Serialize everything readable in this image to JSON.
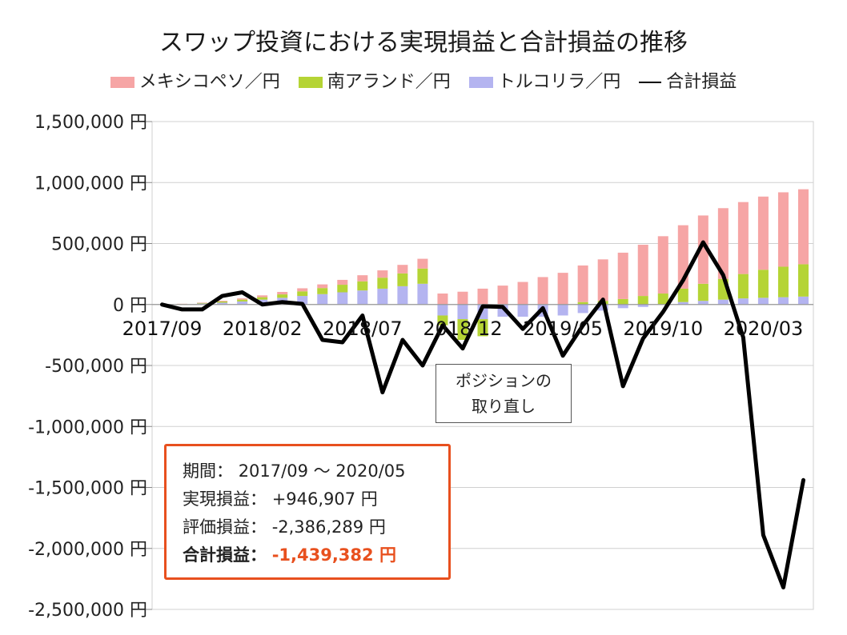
{
  "chart_data": {
    "type": "bar",
    "stacked": true,
    "title": "スワップ投資における実現損益と合計損益の推移",
    "legend_position": "top",
    "ylim": [
      -2500000,
      1500000
    ],
    "yticks": [
      1500000,
      1000000,
      500000,
      0,
      -500000,
      -1000000,
      -1500000,
      -2000000,
      -2500000
    ],
    "ytick_labels": [
      "1,500,000 円",
      "1,000,000 円",
      "500,000 円",
      "0 円",
      "-500,000 円",
      "-1,000,000 円",
      "-1,500,000 円",
      "-2,000,000 円",
      "-2,500,000 円"
    ],
    "grid": true,
    "categories": [
      "2017/09",
      "2017/10",
      "2017/11",
      "2017/12",
      "2018/01",
      "2018/02",
      "2018/03",
      "2018/04",
      "2018/05",
      "2018/06",
      "2018/07",
      "2018/08",
      "2018/09",
      "2018/10",
      "2018/11",
      "2018/12",
      "2019/01",
      "2019/02",
      "2019/03",
      "2019/04",
      "2019/05",
      "2019/06",
      "2019/07",
      "2019/08",
      "2019/09",
      "2019/10",
      "2019/11",
      "2019/12",
      "2020/01",
      "2020/02",
      "2020/03",
      "2020/04",
      "2020/05"
    ],
    "xtick_labels": [
      "2017/09",
      "2018/02",
      "2018/07",
      "2018 12",
      "2019/05",
      "2019/10",
      "2020/03"
    ],
    "xtick_label_index": [
      0,
      5,
      10,
      15,
      20,
      25,
      30
    ],
    "series": [
      {
        "name": "トルコリラ／円",
        "kind": "bar",
        "color": "#b4b4f0",
        "values": [
          0,
          3000,
          8000,
          15000,
          25000,
          40000,
          55000,
          70000,
          85000,
          100000,
          115000,
          130000,
          150000,
          170000,
          -90000,
          -120000,
          -120000,
          -100000,
          -100000,
          -100000,
          -90000,
          -70000,
          -50000,
          -30000,
          -20000,
          0,
          20000,
          30000,
          40000,
          50000,
          55000,
          60000,
          65000
        ]
      },
      {
        "name": "南アランド／円",
        "kind": "bar",
        "color": "#b5d435",
        "values": [
          0,
          2000,
          5000,
          10000,
          15000,
          20000,
          28000,
          38000,
          50000,
          62000,
          75000,
          90000,
          105000,
          125000,
          -80000,
          -170000,
          -140000,
          0,
          0,
          0,
          0,
          20000,
          30000,
          45000,
          70000,
          90000,
          110000,
          140000,
          170000,
          200000,
          230000,
          250000,
          265000
        ]
      },
      {
        "name": "メキシコペソ／円",
        "kind": "bar",
        "color": "#f6a5a5",
        "values": [
          0,
          1000,
          3000,
          6000,
          10000,
          15000,
          20000,
          25000,
          30000,
          40000,
          50000,
          60000,
          70000,
          80000,
          90000,
          105000,
          130000,
          155000,
          185000,
          225000,
          260000,
          300000,
          340000,
          380000,
          420000,
          470000,
          520000,
          560000,
          580000,
          590000,
          600000,
          610000,
          615000
        ]
      },
      {
        "name": "合計損益",
        "kind": "line",
        "color": "#000000",
        "values": [
          0,
          -40000,
          -40000,
          70000,
          100000,
          0,
          20000,
          5000,
          -290000,
          -310000,
          -90000,
          -720000,
          -290000,
          -500000,
          -170000,
          -360000,
          -15000,
          -20000,
          -200000,
          -30000,
          -420000,
          -170000,
          40000,
          -670000,
          -280000,
          -60000,
          200000,
          510000,
          240000,
          -270000,
          -1890000,
          -2320000,
          -1440000
        ]
      }
    ],
    "legend_order": [
      "メキシコペソ／円",
      "南アランド／円",
      "トルコリラ／円",
      "合計損益"
    ]
  },
  "callout": {
    "line1": "ポジションの",
    "line2": "取り直し"
  },
  "summary": {
    "period_label": "期間：",
    "period_value": "2017/09 ～ 2020/05",
    "realized_label": "実現損益：",
    "realized_value": "+946,907 円",
    "unrealized_label": "評価損益：",
    "unrealized_value": "-2,386,289 円",
    "total_label": "合計損益：",
    "total_value": "-1,439,382 円",
    "accent_color": "#e8501e"
  }
}
